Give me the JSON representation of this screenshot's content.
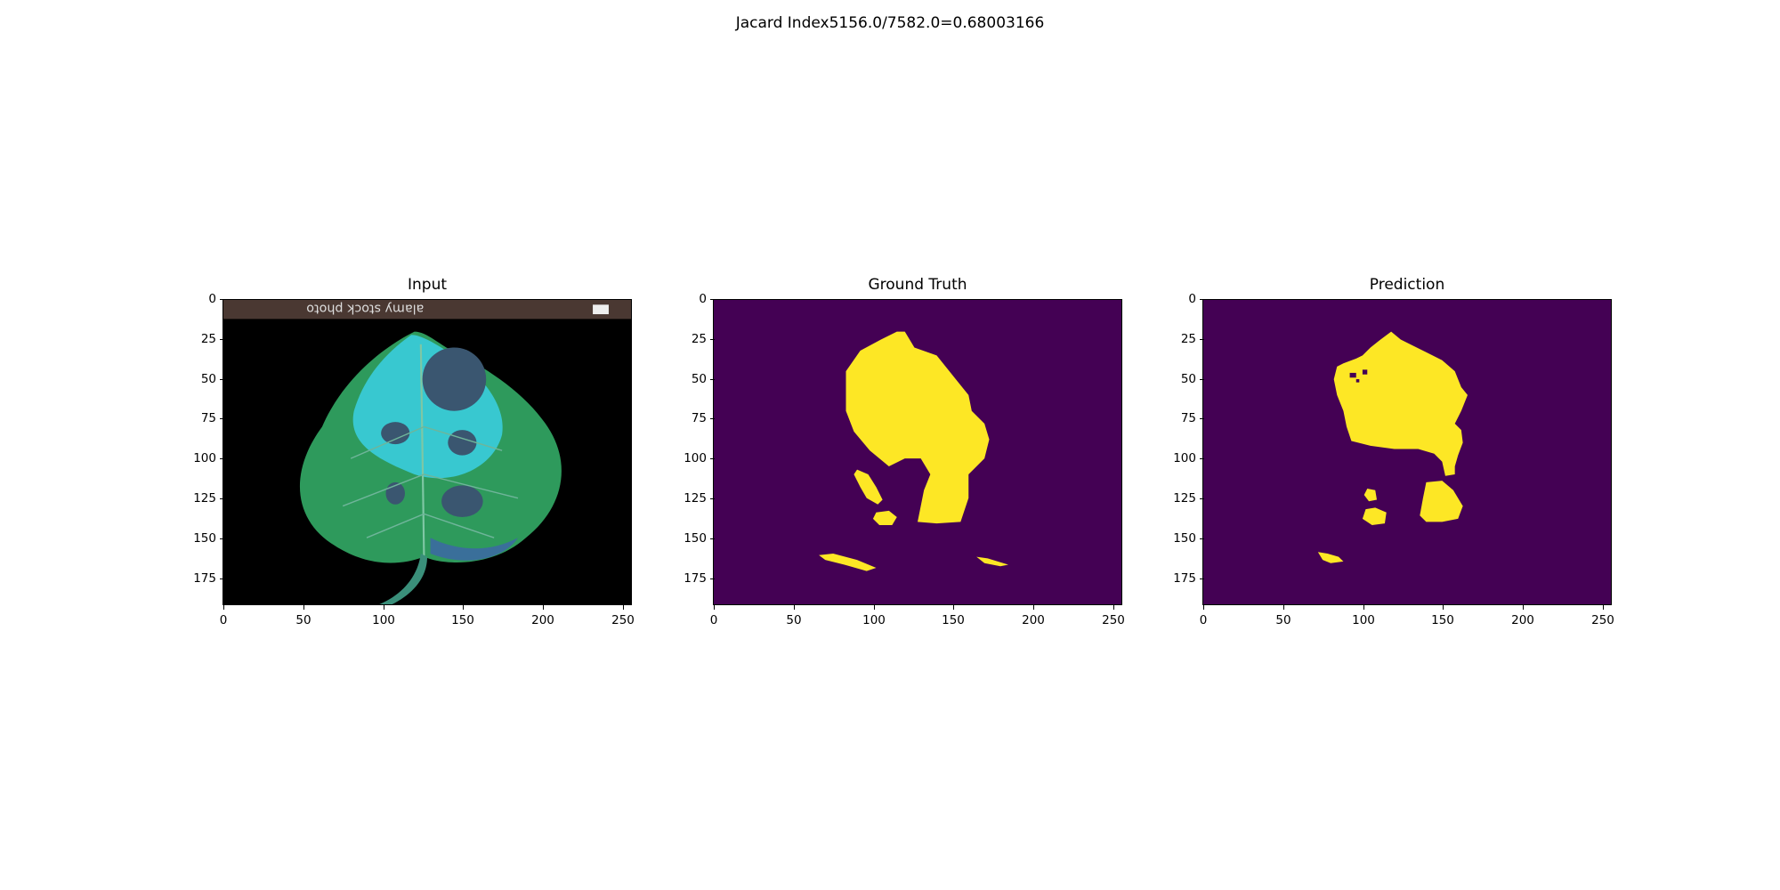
{
  "figure": {
    "suptitle": "Jacard Index5156.0/7582.0=0.68003166"
  },
  "panels": [
    {
      "title": "Input"
    },
    {
      "title": "Ground Truth"
    },
    {
      "title": "Prediction"
    }
  ],
  "axes": {
    "y_ticks": [
      "0",
      "25",
      "50",
      "75",
      "100",
      "125",
      "150",
      "175"
    ],
    "x_ticks": [
      "0",
      "50",
      "100",
      "150",
      "200",
      "250"
    ]
  },
  "input_image": {
    "watermark": "alamy stock photo"
  },
  "colors": {
    "mask_background": "#440154",
    "mask_foreground": "#fde725",
    "leaf_green": "#2e9a5c",
    "leaf_cyan": "#38c8d0",
    "lesion": "#3a5670",
    "banner": "#4a3832"
  }
}
